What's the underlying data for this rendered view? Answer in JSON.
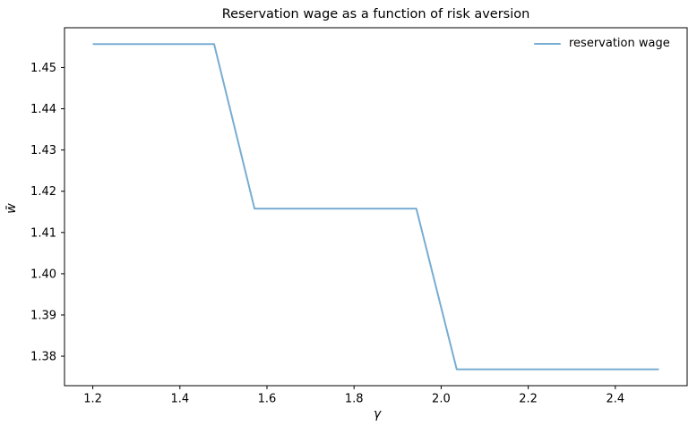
{
  "figure": {
    "background": "#ffffff",
    "title": "Reservation wage as a function of risk aversion",
    "xlabel": "γ",
    "ylabel": "w̄"
  },
  "legend": {
    "frame": false,
    "position": "upper right",
    "entries": [
      {
        "label": "reservation wage",
        "color": "#78add2"
      }
    ]
  },
  "chart_data": {
    "type": "line",
    "title": "Reservation wage as a function of risk aversion",
    "xlabel": "γ",
    "ylabel": "w̄",
    "x": [
      1.2,
      1.2929,
      1.3857,
      1.4786,
      1.5714,
      1.6643,
      1.7571,
      1.85,
      1.9429,
      2.0357,
      2.1286,
      2.2214,
      2.3143,
      2.4071,
      2.5
    ],
    "series": [
      {
        "name": "reservation wage",
        "color": "#78add2",
        "line_width": 2,
        "values": [
          1.4557,
          1.4557,
          1.4557,
          1.4557,
          1.4158,
          1.4158,
          1.4158,
          1.4158,
          1.4158,
          1.3768,
          1.3768,
          1.3768,
          1.3768,
          1.3768,
          1.3768
        ]
      }
    ],
    "xlim": [
      1.135,
      2.565
    ],
    "ylim": [
      1.372855,
      1.459645
    ],
    "xticks": [
      1.2,
      1.4,
      1.6,
      1.8,
      2.0,
      2.2,
      2.4
    ],
    "xtick_labels": [
      "1.2",
      "1.4",
      "1.6",
      "1.8",
      "2.0",
      "2.2",
      "2.4"
    ],
    "yticks": [
      1.38,
      1.39,
      1.4,
      1.41,
      1.42,
      1.43,
      1.44,
      1.45
    ],
    "ytick_labels": [
      "1.38",
      "1.39",
      "1.40",
      "1.41",
      "1.42",
      "1.43",
      "1.44",
      "1.45"
    ],
    "grid": false,
    "legend_position": "upper right",
    "axes_color": "#000000",
    "text_color": "#000000",
    "tick_font_size": 13
  }
}
